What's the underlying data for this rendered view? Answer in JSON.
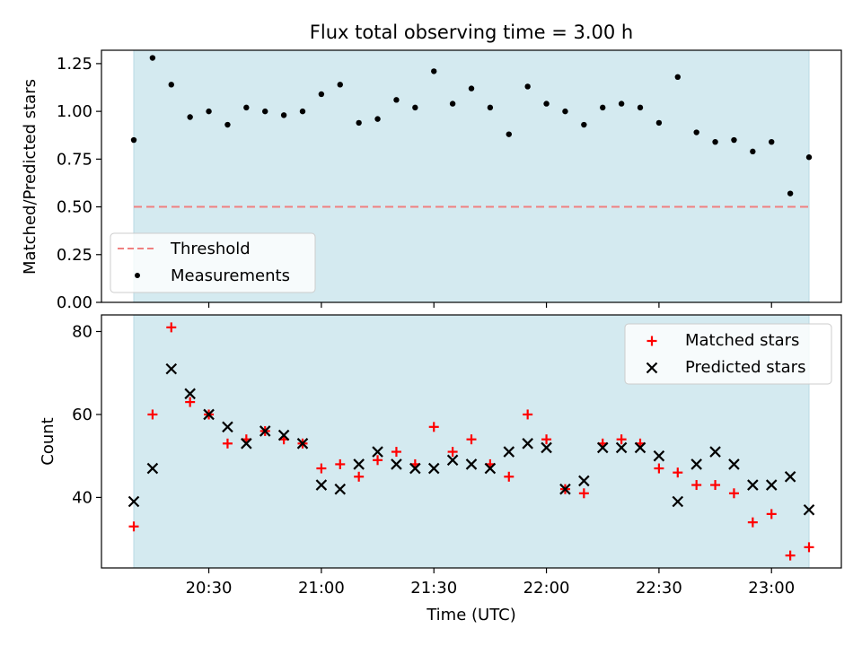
{
  "title": "Flux total observing time = 3.00 h",
  "chart_data": [
    {
      "type": "scatter",
      "xlabel": "",
      "ylabel": "Matched/Predicted stars",
      "ylim": [
        0,
        1.32
      ],
      "yticks": [
        "0.00",
        "0.25",
        "0.50",
        "0.75",
        "1.00",
        "1.25"
      ],
      "threshold": {
        "name": "Threshold",
        "value": 0.5,
        "color": "#f08080"
      },
      "legend": {
        "position": "lower-left",
        "entries": [
          "Threshold",
          "Measurements"
        ]
      },
      "series": [
        {
          "name": "Measurements",
          "color": "#000000",
          "marker": "dot",
          "x": [
            "20:10",
            "20:15",
            "20:20",
            "20:25",
            "20:30",
            "20:35",
            "20:40",
            "20:45",
            "20:50",
            "20:55",
            "21:00",
            "21:05",
            "21:10",
            "21:15",
            "21:20",
            "21:25",
            "21:30",
            "21:35",
            "21:40",
            "21:45",
            "21:50",
            "21:55",
            "22:00",
            "22:05",
            "22:10",
            "22:15",
            "22:20",
            "22:25",
            "22:30",
            "22:35",
            "22:40",
            "22:45",
            "22:50",
            "22:55",
            "23:00",
            "23:05",
            "23:10"
          ],
          "values": [
            0.85,
            1.28,
            1.14,
            0.97,
            1.0,
            0.93,
            1.02,
            1.0,
            0.98,
            1.0,
            1.09,
            1.14,
            0.94,
            0.96,
            1.06,
            1.02,
            1.21,
            1.04,
            1.12,
            1.02,
            0.88,
            1.13,
            1.04,
            1.0,
            0.93,
            1.02,
            1.04,
            1.02,
            0.94,
            1.18,
            0.89,
            0.84,
            0.85,
            0.79,
            0.84,
            0.57,
            0.76
          ]
        }
      ]
    },
    {
      "type": "scatter",
      "xlabel": "Time (UTC)",
      "ylabel": "Count",
      "xlim": [
        "20:10",
        "23:10"
      ],
      "xticks": [
        "20:30",
        "21:00",
        "21:30",
        "22:00",
        "22:30",
        "23:00"
      ],
      "ylim": [
        23,
        84
      ],
      "yticks": [
        "40",
        "60",
        "80"
      ],
      "legend": {
        "position": "top-right",
        "entries": [
          "Matched stars",
          "Predicted stars"
        ]
      },
      "series": [
        {
          "name": "Matched stars",
          "color": "#ff0000",
          "marker": "plus",
          "x": [
            "20:10",
            "20:15",
            "20:20",
            "20:25",
            "20:30",
            "20:35",
            "20:40",
            "20:45",
            "20:50",
            "20:55",
            "21:00",
            "21:05",
            "21:10",
            "21:15",
            "21:20",
            "21:25",
            "21:30",
            "21:35",
            "21:40",
            "21:45",
            "21:50",
            "21:55",
            "22:00",
            "22:05",
            "22:10",
            "22:15",
            "22:20",
            "22:25",
            "22:30",
            "22:35",
            "22:40",
            "22:45",
            "22:50",
            "22:55",
            "23:00",
            "23:05",
            "23:10"
          ],
          "values": [
            33,
            60,
            81,
            63,
            60,
            53,
            54,
            56,
            54,
            53,
            47,
            48,
            45,
            49,
            51,
            48,
            57,
            51,
            54,
            48,
            45,
            60,
            54,
            42,
            41,
            53,
            54,
            53,
            47,
            46,
            43,
            43,
            41,
            34,
            36,
            26,
            28
          ]
        },
        {
          "name": "Predicted stars",
          "color": "#000000",
          "marker": "x",
          "x": [
            "20:10",
            "20:15",
            "20:20",
            "20:25",
            "20:30",
            "20:35",
            "20:40",
            "20:45",
            "20:50",
            "20:55",
            "21:00",
            "21:05",
            "21:10",
            "21:15",
            "21:20",
            "21:25",
            "21:30",
            "21:35",
            "21:40",
            "21:45",
            "21:50",
            "21:55",
            "22:00",
            "22:05",
            "22:10",
            "22:15",
            "22:20",
            "22:25",
            "22:30",
            "22:35",
            "22:40",
            "22:45",
            "22:50",
            "22:55",
            "23:00",
            "23:05",
            "23:10"
          ],
          "values": [
            39,
            47,
            71,
            65,
            60,
            57,
            53,
            56,
            55,
            53,
            43,
            42,
            48,
            51,
            48,
            47,
            47,
            49,
            48,
            47,
            51,
            53,
            52,
            42,
            44,
            52,
            52,
            52,
            50,
            39,
            48,
            51,
            48,
            43,
            43,
            45,
            37
          ]
        }
      ]
    }
  ],
  "colors": {
    "shade": "#d4eaf0",
    "shade_edge": "#b9dbe5"
  }
}
